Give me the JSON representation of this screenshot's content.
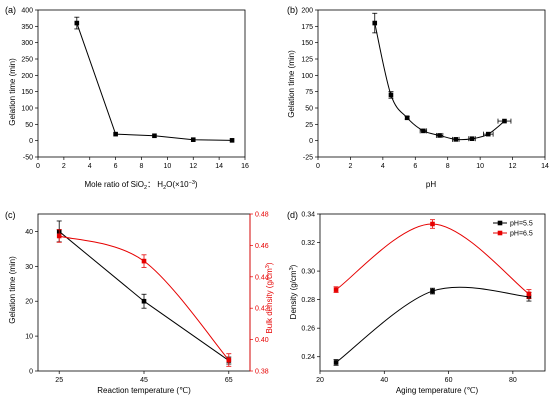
{
  "chart_data": [
    {
      "panel_label": "(a)",
      "type": "line",
      "xlabel_parts": [
        "Mole ratio of SiO",
        "2",
        "： H",
        "2",
        "O(×10",
        "−3",
        ")"
      ],
      "ylabel": "Gelation time (min)",
      "xlim": [
        0,
        16
      ],
      "ylim": [
        -50,
        400
      ],
      "xticks": [
        0,
        2,
        4,
        6,
        8,
        10,
        12,
        14,
        16
      ],
      "yticks": [
        -50,
        0,
        50,
        100,
        150,
        200,
        250,
        300,
        350,
        400
      ],
      "series": [
        {
          "color": "#000000",
          "curve": "straight",
          "points": [
            {
              "x": 3,
              "y": 360,
              "yerr": 18
            },
            {
              "x": 6,
              "y": 20,
              "yerr": 0
            },
            {
              "x": 9,
              "y": 15,
              "yerr": 0
            },
            {
              "x": 12,
              "y": 3,
              "yerr": 0
            },
            {
              "x": 15,
              "y": 1,
              "yerr": 0
            }
          ]
        }
      ]
    },
    {
      "panel_label": "(b)",
      "type": "scatter",
      "xlabel": "pH",
      "ylabel": "Gelation time (min)",
      "xlim": [
        0,
        14
      ],
      "ylim": [
        -25,
        200
      ],
      "xticks": [
        0,
        2,
        4,
        6,
        8,
        10,
        12,
        14
      ],
      "yticks": [
        -25,
        0,
        25,
        50,
        75,
        100,
        125,
        150,
        175,
        200
      ],
      "series": [
        {
          "color": "#000000",
          "curve": "smooth",
          "points": [
            {
              "x": 3.5,
              "y": 180,
              "yerr": 15,
              "xerr": 0
            },
            {
              "x": 4.5,
              "y": 70,
              "yerr": 5,
              "xerr": 0
            },
            {
              "x": 5.5,
              "y": 35,
              "yerr": 2,
              "xerr": 0
            },
            {
              "x": 6.5,
              "y": 15,
              "yerr": 0,
              "xerr": 0.2
            },
            {
              "x": 7.5,
              "y": 8,
              "yerr": 0,
              "xerr": 0.2
            },
            {
              "x": 8.5,
              "y": 2,
              "yerr": 0,
              "xerr": 0.2
            },
            {
              "x": 9.5,
              "y": 3,
              "yerr": 0,
              "xerr": 0.2
            },
            {
              "x": 10.5,
              "y": 10,
              "yerr": 0,
              "xerr": 0.3
            },
            {
              "x": 11.5,
              "y": 30,
              "yerr": 0,
              "xerr": 0.4
            }
          ]
        }
      ]
    },
    {
      "panel_label": "(c)",
      "type": "line",
      "xlabel": "Reaction temperature (℃)",
      "ylabel": "Gelation time (min)",
      "ylabel_right_parts": [
        "Bulk density (g/cm",
        "3",
        ")"
      ],
      "xlim": [
        20,
        70
      ],
      "ylim": [
        0,
        45
      ],
      "ylim_right": [
        0.38,
        0.48
      ],
      "xticks": [
        25,
        45,
        65
      ],
      "yticks": [
        0,
        10,
        20,
        30,
        40
      ],
      "yticks_right": [
        0.38,
        0.4,
        0.42,
        0.44,
        0.46,
        0.48
      ],
      "right_axis_color": "#e60000",
      "series": [
        {
          "color": "#000000",
          "axis": "left",
          "curve": "straight",
          "points": [
            {
              "x": 25,
              "y": 40,
              "yerr": 3
            },
            {
              "x": 45,
              "y": 20,
              "yerr": 2
            },
            {
              "x": 65,
              "y": 3,
              "yerr": 1
            }
          ]
        },
        {
          "color": "#e60000",
          "axis": "right",
          "curve": "smooth",
          "points": [
            {
              "x": 25,
              "y": 0.466,
              "yerr": 0.004
            },
            {
              "x": 45,
              "y": 0.45,
              "yerr": 0.004
            },
            {
              "x": 65,
              "y": 0.387,
              "yerr": 0.004
            }
          ]
        }
      ]
    },
    {
      "panel_label": "(d)",
      "type": "line",
      "xlabel": "Aging temperature (℃)",
      "ylabel_parts": [
        "Density (g/cm",
        "3",
        ")"
      ],
      "xlim": [
        20,
        90
      ],
      "ylim": [
        0.23,
        0.34
      ],
      "xticks": [
        20,
        40,
        60,
        80
      ],
      "yticks": [
        0.24,
        0.26,
        0.28,
        0.3,
        0.32,
        0.34
      ],
      "legend": "top-right",
      "series": [
        {
          "name": "pH=5.5",
          "color": "#000000",
          "curve": "smooth",
          "points": [
            {
              "x": 25,
              "y": 0.236,
              "yerr": 0.002
            },
            {
              "x": 55,
              "y": 0.286,
              "yerr": 0.002
            },
            {
              "x": 85,
              "y": 0.282,
              "yerr": 0.003
            }
          ]
        },
        {
          "name": "pH=6.5",
          "color": "#e60000",
          "curve": "smooth",
          "points": [
            {
              "x": 25,
              "y": 0.287,
              "yerr": 0.002
            },
            {
              "x": 55,
              "y": 0.333,
              "yerr": 0.003
            },
            {
              "x": 85,
              "y": 0.284,
              "yerr": 0.003
            }
          ]
        }
      ]
    }
  ]
}
